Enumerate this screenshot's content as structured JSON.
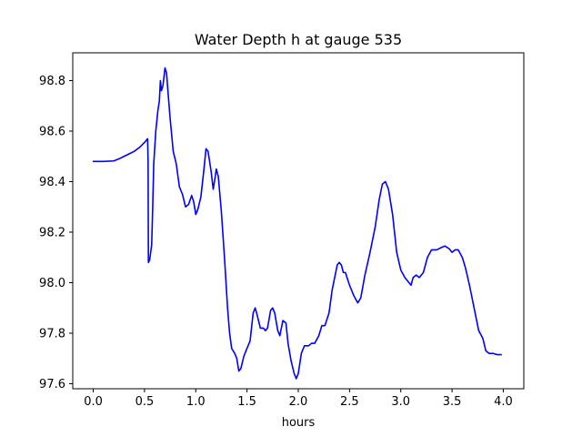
{
  "chart_data": {
    "type": "line",
    "title": "Water Depth h at gauge 535",
    "xlabel": "hours",
    "ylabel": "",
    "xlim": [
      -0.2,
      4.2
    ],
    "ylim": [
      97.58,
      98.91
    ],
    "xticks": [
      0.0,
      0.5,
      1.0,
      1.5,
      2.0,
      2.5,
      3.0,
      3.5,
      4.0
    ],
    "xtick_labels": [
      "0.0",
      "0.5",
      "1.0",
      "1.5",
      "2.0",
      "2.5",
      "3.0",
      "3.5",
      "4.0"
    ],
    "yticks": [
      97.6,
      97.8,
      98.0,
      98.2,
      98.4,
      98.6,
      98.8
    ],
    "ytick_labels": [
      "97.6",
      "97.8",
      "98.0",
      "98.2",
      "98.4",
      "98.6",
      "98.8"
    ],
    "grid": false,
    "legend": "none",
    "series": [
      {
        "color": "#0000ff",
        "points": [
          [
            0.0,
            98.48
          ],
          [
            0.1,
            98.48
          ],
          [
            0.2,
            98.482
          ],
          [
            0.25,
            98.49
          ],
          [
            0.3,
            98.5
          ],
          [
            0.35,
            98.51
          ],
          [
            0.4,
            98.52
          ],
          [
            0.45,
            98.535
          ],
          [
            0.5,
            98.555
          ],
          [
            0.53,
            98.57
          ],
          [
            0.535,
            98.48
          ],
          [
            0.538,
            98.08
          ],
          [
            0.55,
            98.09
          ],
          [
            0.57,
            98.15
          ],
          [
            0.58,
            98.3
          ],
          [
            0.59,
            98.47
          ],
          [
            0.61,
            98.6
          ],
          [
            0.63,
            98.68
          ],
          [
            0.645,
            98.72
          ],
          [
            0.655,
            98.8
          ],
          [
            0.665,
            98.76
          ],
          [
            0.68,
            98.78
          ],
          [
            0.7,
            98.85
          ],
          [
            0.715,
            98.83
          ],
          [
            0.73,
            98.75
          ],
          [
            0.75,
            98.65
          ],
          [
            0.78,
            98.52
          ],
          [
            0.81,
            98.47
          ],
          [
            0.84,
            98.38
          ],
          [
            0.87,
            98.35
          ],
          [
            0.9,
            98.3
          ],
          [
            0.93,
            98.31
          ],
          [
            0.96,
            98.345
          ],
          [
            0.98,
            98.32
          ],
          [
            1.0,
            98.27
          ],
          [
            1.02,
            98.29
          ],
          [
            1.05,
            98.34
          ],
          [
            1.08,
            98.45
          ],
          [
            1.1,
            98.53
          ],
          [
            1.12,
            98.52
          ],
          [
            1.15,
            98.44
          ],
          [
            1.17,
            98.37
          ],
          [
            1.19,
            98.42
          ],
          [
            1.2,
            98.45
          ],
          [
            1.22,
            98.42
          ],
          [
            1.25,
            98.28
          ],
          [
            1.28,
            98.1
          ],
          [
            1.31,
            97.9
          ],
          [
            1.33,
            97.8
          ],
          [
            1.35,
            97.74
          ],
          [
            1.38,
            97.72
          ],
          [
            1.4,
            97.7
          ],
          [
            1.42,
            97.65
          ],
          [
            1.44,
            97.66
          ],
          [
            1.47,
            97.71
          ],
          [
            1.5,
            97.74
          ],
          [
            1.53,
            97.77
          ],
          [
            1.56,
            97.88
          ],
          [
            1.58,
            97.9
          ],
          [
            1.6,
            97.87
          ],
          [
            1.63,
            97.82
          ],
          [
            1.66,
            97.82
          ],
          [
            1.68,
            97.81
          ],
          [
            1.7,
            97.82
          ],
          [
            1.73,
            97.89
          ],
          [
            1.75,
            97.9
          ],
          [
            1.77,
            97.88
          ],
          [
            1.8,
            97.81
          ],
          [
            1.82,
            97.79
          ],
          [
            1.85,
            97.85
          ],
          [
            1.88,
            97.84
          ],
          [
            1.9,
            97.76
          ],
          [
            1.93,
            97.69
          ],
          [
            1.96,
            97.64
          ],
          [
            1.98,
            97.62
          ],
          [
            2.0,
            97.64
          ],
          [
            2.03,
            97.72
          ],
          [
            2.06,
            97.75
          ],
          [
            2.1,
            97.75
          ],
          [
            2.13,
            97.76
          ],
          [
            2.16,
            97.76
          ],
          [
            2.2,
            97.79
          ],
          [
            2.23,
            97.83
          ],
          [
            2.26,
            97.83
          ],
          [
            2.3,
            97.88
          ],
          [
            2.33,
            97.97
          ],
          [
            2.36,
            98.03
          ],
          [
            2.38,
            98.07
          ],
          [
            2.4,
            98.08
          ],
          [
            2.42,
            98.07
          ],
          [
            2.44,
            98.04
          ],
          [
            2.46,
            98.04
          ],
          [
            2.5,
            97.99
          ],
          [
            2.54,
            97.95
          ],
          [
            2.58,
            97.92
          ],
          [
            2.61,
            97.94
          ],
          [
            2.65,
            98.03
          ],
          [
            2.7,
            98.12
          ],
          [
            2.75,
            98.22
          ],
          [
            2.79,
            98.33
          ],
          [
            2.82,
            98.39
          ],
          [
            2.85,
            98.4
          ],
          [
            2.88,
            98.37
          ],
          [
            2.92,
            98.27
          ],
          [
            2.96,
            98.12
          ],
          [
            3.0,
            98.05
          ],
          [
            3.04,
            98.02
          ],
          [
            3.08,
            98.0
          ],
          [
            3.1,
            97.99
          ],
          [
            3.12,
            98.02
          ],
          [
            3.15,
            98.03
          ],
          [
            3.18,
            98.02
          ],
          [
            3.22,
            98.04
          ],
          [
            3.26,
            98.1
          ],
          [
            3.3,
            98.13
          ],
          [
            3.35,
            98.13
          ],
          [
            3.4,
            98.14
          ],
          [
            3.43,
            98.145
          ],
          [
            3.47,
            98.135
          ],
          [
            3.5,
            98.12
          ],
          [
            3.53,
            98.13
          ],
          [
            3.56,
            98.13
          ],
          [
            3.6,
            98.1
          ],
          [
            3.63,
            98.06
          ],
          [
            3.67,
            97.99
          ],
          [
            3.7,
            97.93
          ],
          [
            3.73,
            97.87
          ],
          [
            3.76,
            97.81
          ],
          [
            3.8,
            97.78
          ],
          [
            3.83,
            97.73
          ],
          [
            3.86,
            97.72
          ],
          [
            3.9,
            97.72
          ],
          [
            3.94,
            97.715
          ],
          [
            3.98,
            97.715
          ]
        ]
      }
    ]
  }
}
